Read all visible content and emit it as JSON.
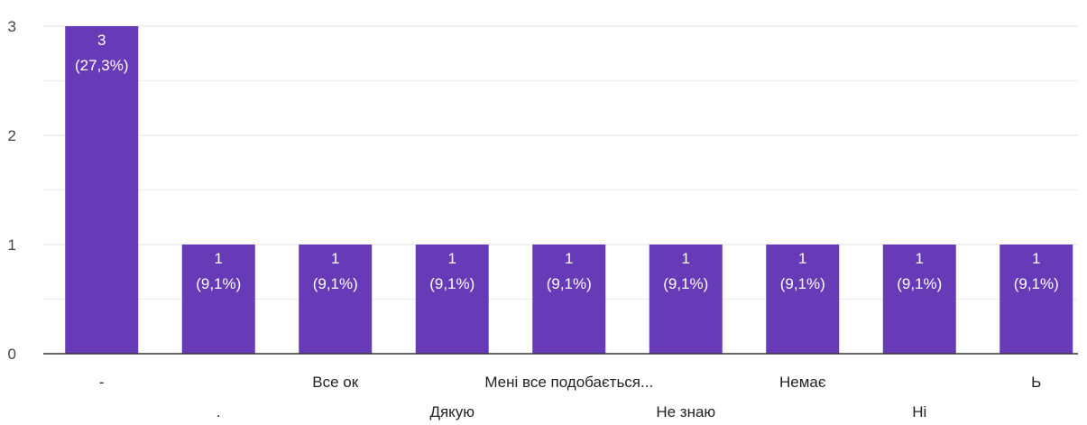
{
  "chart_data": {
    "type": "bar",
    "title": "",
    "xlabel": "",
    "ylabel": "",
    "ylim": [
      0,
      3
    ],
    "yticks": [
      0,
      1,
      2,
      3
    ],
    "grid": true,
    "colors": {
      "bar": "#673ab7",
      "grid": "#e6e6e6",
      "axis": "#333333"
    },
    "categories": [
      "-",
      ".",
      "Все ок",
      "Дякую",
      "Мені все подобається...",
      "Не знаю",
      "Немає",
      "Ні",
      "Ь"
    ],
    "values": [
      3,
      1,
      1,
      1,
      1,
      1,
      1,
      1,
      1
    ],
    "data_labels": [
      [
        "3",
        "(27,3%)"
      ],
      [
        "1",
        "(9,1%)"
      ],
      [
        "1",
        "(9,1%)"
      ],
      [
        "1",
        "(9,1%)"
      ],
      [
        "1",
        "(9,1%)"
      ],
      [
        "1",
        "(9,1%)"
      ],
      [
        "1",
        "(9,1%)"
      ],
      [
        "1",
        "(9,1%)"
      ],
      [
        "1",
        "(9,1%)"
      ]
    ]
  }
}
